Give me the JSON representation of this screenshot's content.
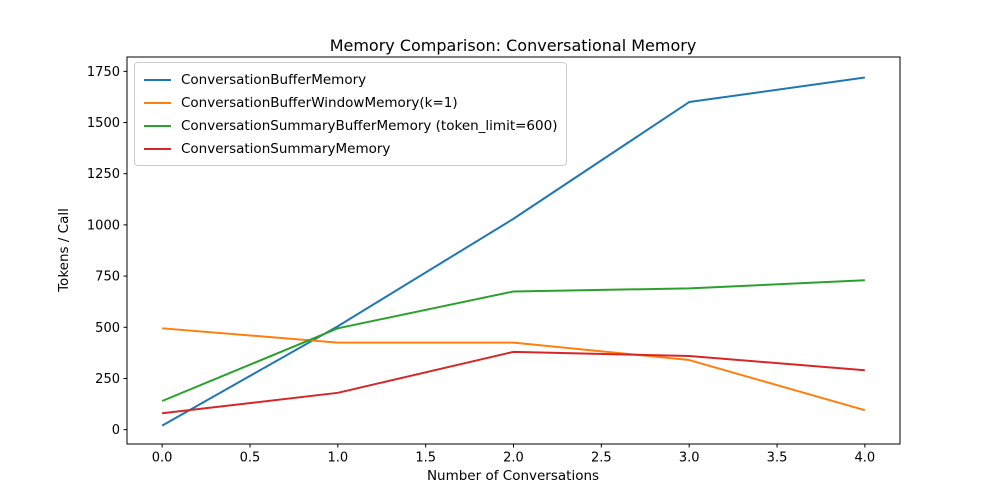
{
  "chart_data": {
    "type": "line",
    "title": "Memory Comparison: Conversational Memory",
    "xlabel": "Number of Conversations",
    "ylabel": "Tokens / Call",
    "x": [
      0,
      1,
      2,
      3,
      4
    ],
    "series": [
      {
        "name": "ConversationBufferMemory",
        "color": "#1f77b4",
        "values": [
          20,
          505,
          1030,
          1600,
          1720
        ]
      },
      {
        "name": "ConversationBufferWindowMemory(k=1)",
        "color": "#ff7f0e",
        "values": [
          495,
          425,
          425,
          340,
          95
        ]
      },
      {
        "name": "ConversationSummaryBufferMemory (token_limit=600)",
        "color": "#2ca02c",
        "values": [
          140,
          495,
          675,
          690,
          730
        ]
      },
      {
        "name": "ConversationSummaryMemory",
        "color": "#d62728",
        "values": [
          80,
          180,
          380,
          360,
          290
        ]
      }
    ],
    "xticks": [
      0.0,
      0.5,
      1.0,
      1.5,
      2.0,
      2.5,
      3.0,
      3.5,
      4.0
    ],
    "xtick_labels": [
      "0.0",
      "0.5",
      "1.0",
      "1.5",
      "2.0",
      "2.5",
      "3.0",
      "3.5",
      "4.0"
    ],
    "yticks": [
      0,
      250,
      500,
      750,
      1000,
      1250,
      1500,
      1750
    ],
    "ytick_labels": [
      "0",
      "250",
      "500",
      "750",
      "1000",
      "1250",
      "1500",
      "1750"
    ],
    "xlim": [
      -0.2,
      4.2
    ],
    "ylim": [
      -70,
      1820
    ],
    "grid": false,
    "legend_position": "upper left",
    "background": "#ffffff",
    "spine_color": "#000000"
  }
}
